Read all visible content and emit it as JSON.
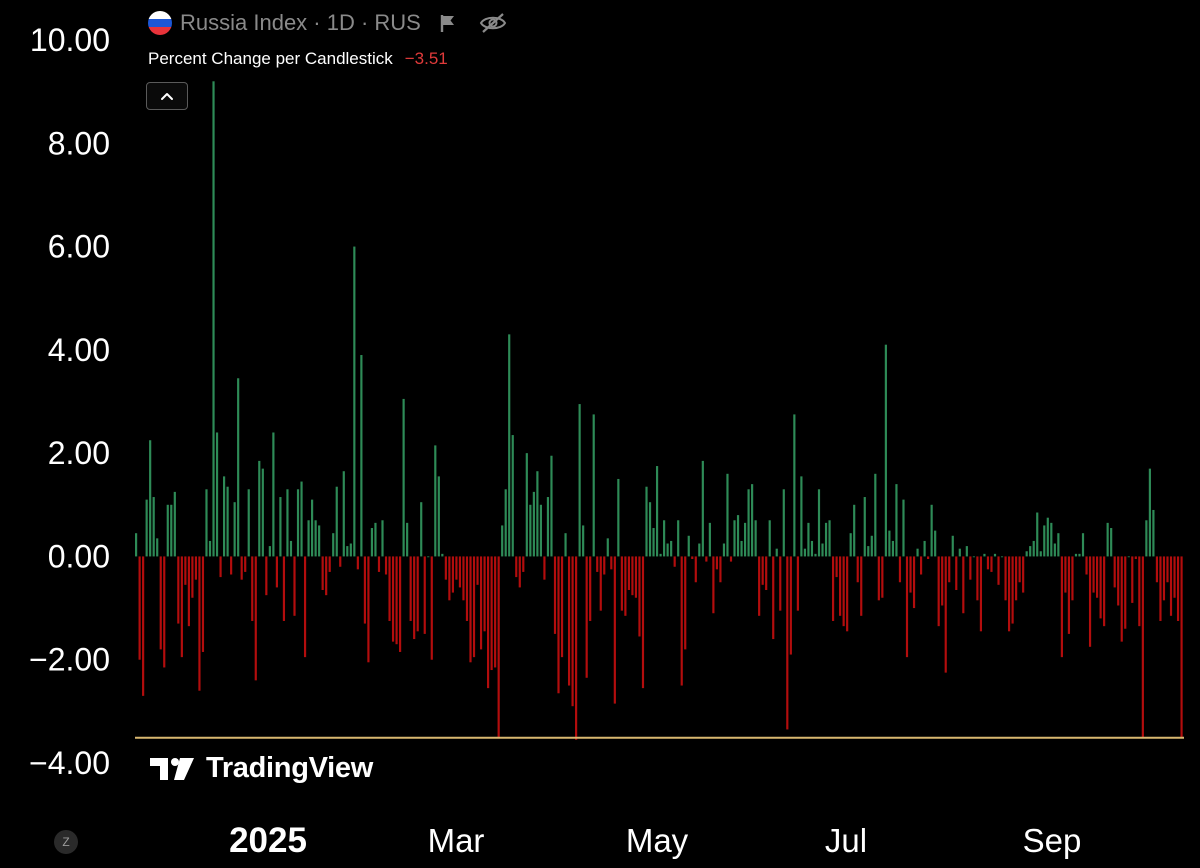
{
  "header": {
    "title": "Russia Index · 1D · RUS",
    "flag_colors": [
      "#ffffff",
      "#1c57d6",
      "#e8333a"
    ]
  },
  "indicator": {
    "name": "Percent Change per Candlestick",
    "value": "−3.51"
  },
  "watermark": "TradingView",
  "zoom_badge": "Z",
  "colors": {
    "positive": "#2e8b57",
    "negative": "#b30d0d",
    "price_line": "#d9b870",
    "background": "#000000"
  },
  "icons": [
    "chevron-up-icon",
    "flag-icon",
    "eye-off-icon",
    "tradingview-logo-icon"
  ],
  "chart_data": {
    "type": "bar",
    "title": "Percent Change per Candlestick",
    "ylim": [
      -4,
      10
    ],
    "y_ticks": [
      10,
      8,
      6,
      4,
      2,
      0,
      -2,
      -4
    ],
    "y_tick_labels": [
      "10.00",
      "8.00",
      "6.00",
      "4.00",
      "2.00",
      "0.00",
      "−2.00",
      "−4.00"
    ],
    "x_tick_labels": [
      "2025",
      "Mar",
      "May",
      "Jul",
      "Sep"
    ],
    "horizontal_line": -3.51,
    "grid": false,
    "values": [
      0.45,
      -2.0,
      -2.7,
      1.1,
      2.25,
      1.15,
      0.35,
      -1.8,
      -2.15,
      1.0,
      1.0,
      1.25,
      -1.3,
      -1.95,
      -0.55,
      -1.35,
      -0.8,
      -0.45,
      -2.6,
      -1.85,
      1.3,
      0.3,
      9.2,
      2.4,
      -0.4,
      1.55,
      1.35,
      -0.35,
      1.05,
      3.45,
      -0.45,
      -0.3,
      1.3,
      -1.25,
      -2.4,
      1.85,
      1.7,
      -0.75,
      0.2,
      2.4,
      -0.6,
      1.15,
      -1.25,
      1.3,
      0.3,
      -1.15,
      1.3,
      1.45,
      -1.95,
      0.7,
      1.1,
      0.7,
      0.6,
      -0.65,
      -0.75,
      -0.3,
      0.45,
      1.35,
      -0.2,
      1.65,
      0.2,
      0.25,
      6.0,
      -0.25,
      3.9,
      -1.3,
      -2.05,
      0.55,
      0.65,
      -0.3,
      0.7,
      -0.35,
      -1.25,
      -1.65,
      -1.7,
      -1.85,
      3.05,
      0.65,
      -1.25,
      -1.6,
      -1.45,
      1.05,
      -1.5,
      0.0,
      -2.0,
      2.15,
      1.55,
      0.05,
      -0.45,
      -0.85,
      -0.7,
      -0.45,
      -0.6,
      -0.85,
      -1.25,
      -2.05,
      -1.95,
      -0.55,
      -1.8,
      -1.45,
      -2.55,
      -2.2,
      -2.15,
      -3.5,
      0.6,
      1.3,
      4.3,
      2.35,
      -0.4,
      -0.6,
      -0.3,
      2.0,
      1.0,
      1.25,
      1.65,
      1.0,
      -0.45,
      1.15,
      1.95,
      -1.5,
      -2.65,
      -1.95,
      0.45,
      -2.5,
      -2.9,
      -3.55,
      2.95,
      0.6,
      -2.35,
      -1.25,
      2.75,
      -0.3,
      -1.05,
      -0.35,
      0.35,
      -0.25,
      -2.85,
      1.5,
      -1.05,
      -1.15,
      -0.65,
      -0.75,
      -0.8,
      -1.55,
      -2.55,
      1.35,
      1.05,
      0.55,
      1.75,
      0.05,
      0.7,
      0.25,
      0.3,
      -0.2,
      0.7,
      -2.5,
      -1.8,
      0.4,
      -0.05,
      -0.5,
      0.25,
      1.85,
      -0.1,
      0.65,
      -1.1,
      -0.25,
      -0.5,
      0.25,
      1.6,
      -0.1,
      0.7,
      0.8,
      0.3,
      0.65,
      1.3,
      1.4,
      0.7,
      -1.15,
      -0.55,
      -0.65,
      0.7,
      -1.6,
      0.15,
      -1.05,
      1.3,
      -3.35,
      -1.9,
      2.75,
      -1.05,
      1.55,
      0.15,
      0.65,
      0.3,
      0.05,
      1.3,
      0.25,
      0.65,
      0.7,
      -1.25,
      -0.4,
      -1.15,
      -1.35,
      -1.45,
      0.45,
      1.0,
      -0.5,
      -1.15,
      1.15,
      0.2,
      0.4,
      1.6,
      -0.85,
      -0.8,
      4.1,
      0.5,
      0.3,
      1.4,
      -0.5,
      1.1,
      -1.95,
      -0.7,
      -1.0,
      0.15,
      -0.35,
      0.3,
      -0.05,
      1.0,
      0.5,
      -1.35,
      -0.95,
      -2.25,
      -0.5,
      0.4,
      -0.65,
      0.15,
      -1.1,
      0.2,
      -0.45,
      0.0,
      -0.85,
      -1.45,
      0.05,
      -0.25,
      -0.3,
      0.05,
      -0.55,
      0.0,
      -0.85,
      -1.45,
      -1.3,
      -0.85,
      -0.5,
      -0.7,
      0.1,
      0.2,
      0.3,
      0.85,
      0.1,
      0.6,
      0.75,
      0.65,
      0.25,
      0.45,
      -1.95,
      -0.7,
      -1.5,
      -0.85,
      0.05,
      0.05,
      0.45,
      -0.35,
      -1.75,
      -0.7,
      -0.8,
      -1.2,
      -1.35,
      0.65,
      0.55,
      -0.6,
      -0.95,
      -1.65,
      -1.4,
      0.0,
      -0.9,
      -0.05,
      -1.35,
      -3.5,
      0.7,
      1.7,
      0.9,
      -0.5,
      -1.25,
      -0.85,
      -0.5,
      -1.15,
      -0.8,
      -1.25,
      -3.51
    ]
  }
}
